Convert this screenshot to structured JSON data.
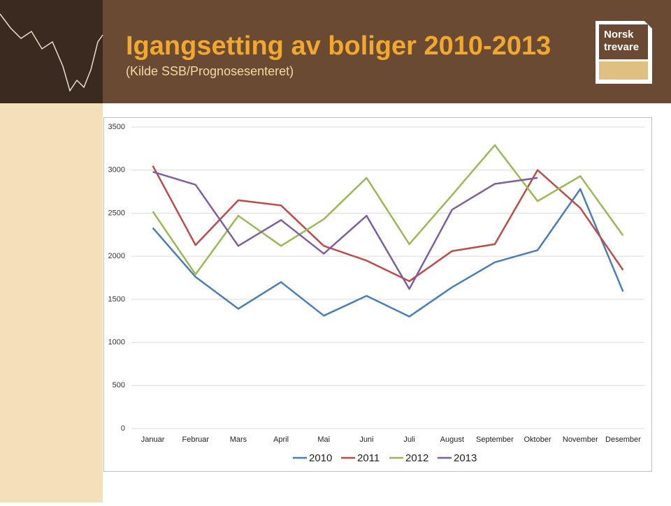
{
  "header": {
    "title": "Igangsetting av boliger 2010-2013",
    "subtitle": "(Kilde SSB/Prognosesenteret)",
    "logo": [
      "Norsk",
      "trevare"
    ]
  },
  "chart_data": {
    "type": "line",
    "categories": [
      "Januar",
      "Februar",
      "Mars",
      "April",
      "Mai",
      "Juni",
      "Juli",
      "August",
      "September",
      "Oktober",
      "November",
      "Desember"
    ],
    "series": [
      {
        "name": "2010",
        "color": "#4a7ebb",
        "values": [
          2330,
          1760,
          1390,
          1700,
          1310,
          1540,
          1300,
          1640,
          1930,
          2070,
          2780,
          1590
        ]
      },
      {
        "name": "2011",
        "color": "#be4b48",
        "values": [
          3050,
          2130,
          2650,
          2590,
          2120,
          1950,
          1710,
          2060,
          2140,
          3000,
          2560,
          1840
        ]
      },
      {
        "name": "2012",
        "color": "#98b954",
        "values": [
          2520,
          1790,
          2470,
          2120,
          2430,
          2910,
          2140,
          2710,
          3290,
          2640,
          2930,
          2240
        ]
      },
      {
        "name": "2013",
        "color": "#7d5fa0",
        "values": [
          2980,
          2830,
          2120,
          2420,
          2030,
          2470,
          1620,
          2540,
          2840,
          2910,
          null,
          null
        ]
      }
    ],
    "ylim": [
      0,
      3500
    ],
    "yticks": [
      0,
      500,
      1000,
      1500,
      2000,
      2500,
      3000,
      3500
    ],
    "grid": true,
    "legend": "bottom"
  }
}
